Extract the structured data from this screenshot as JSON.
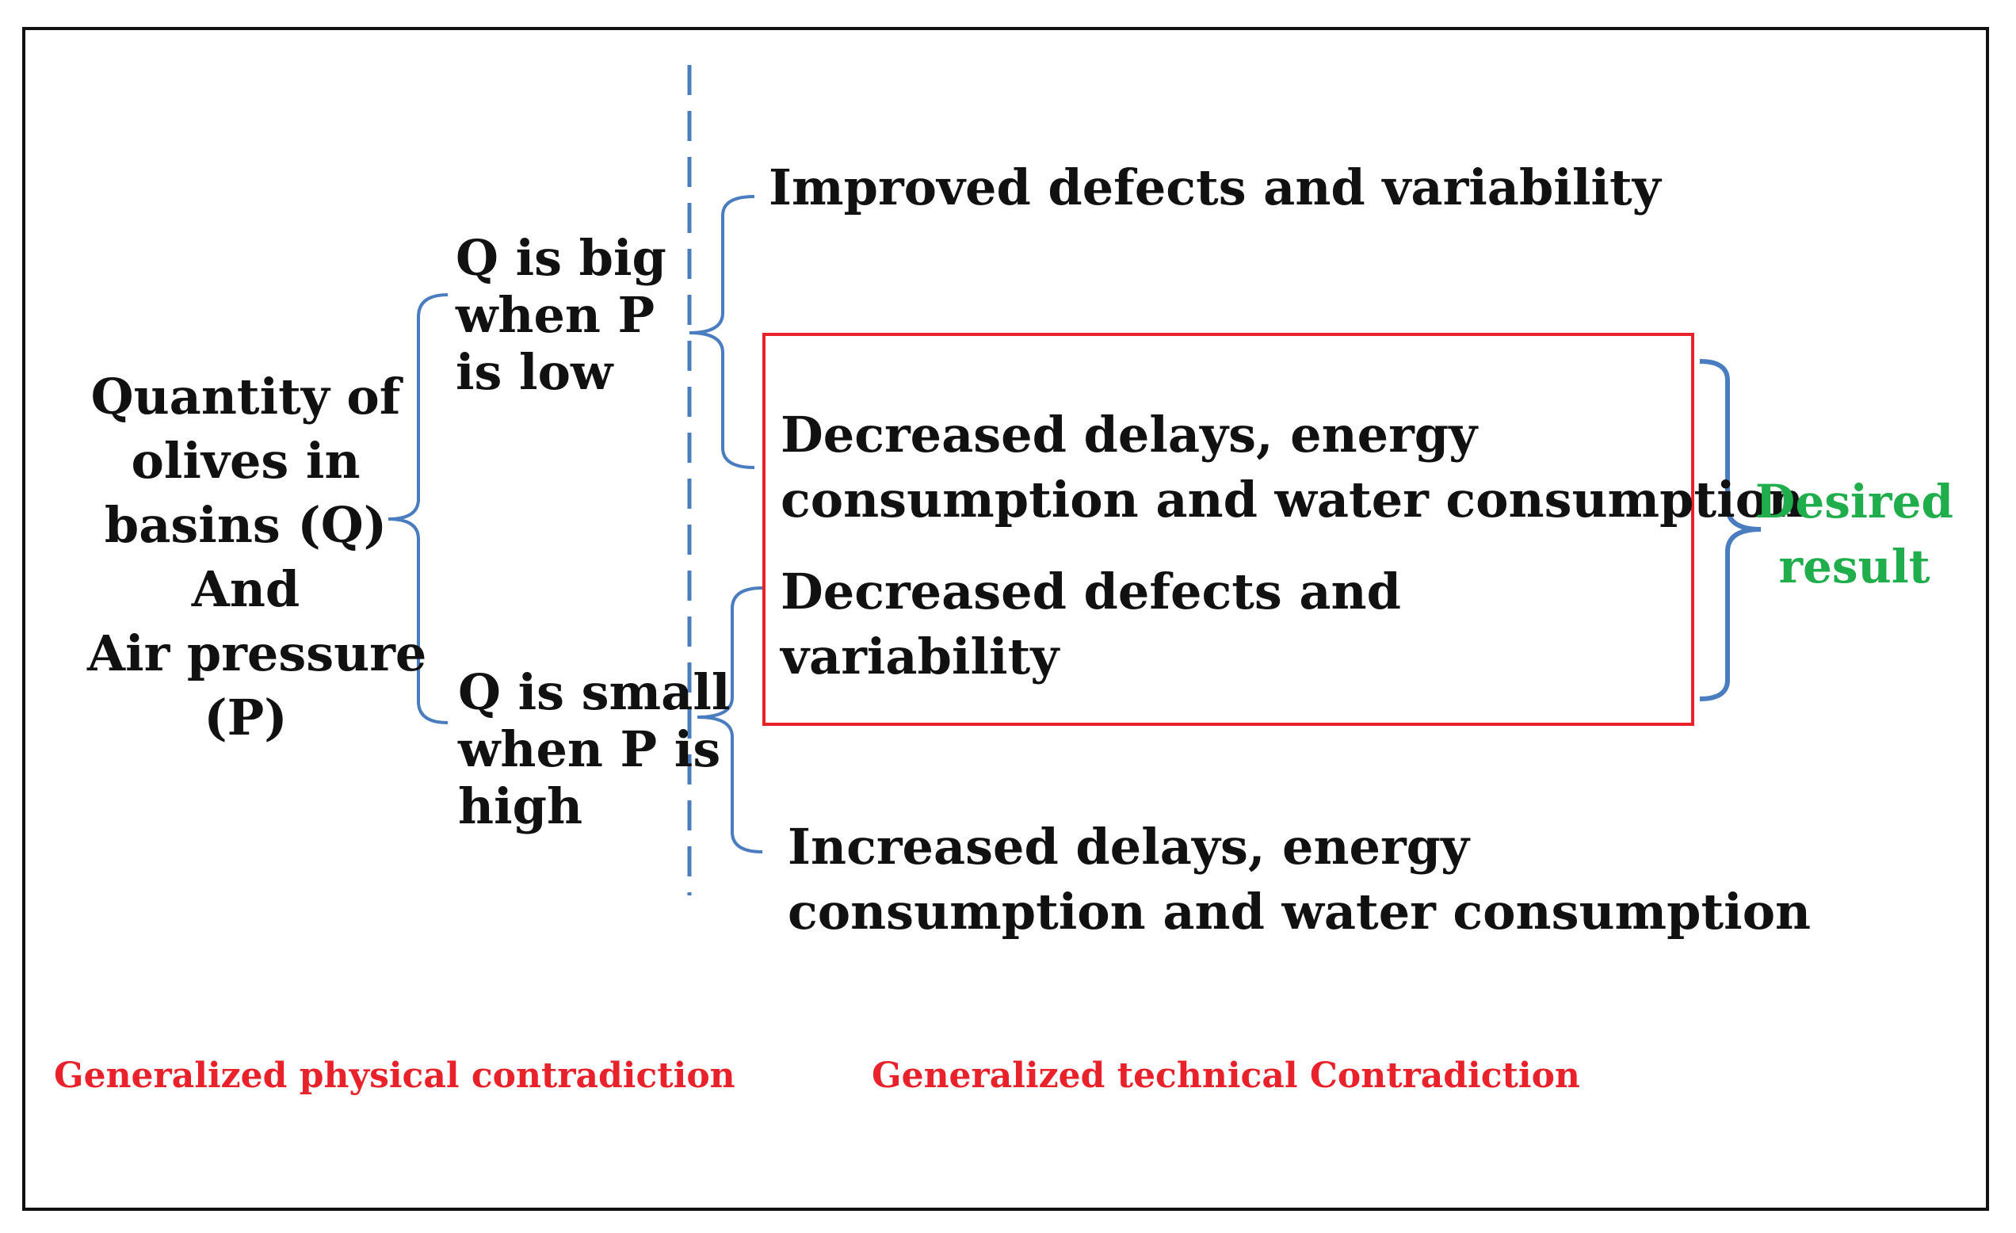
{
  "left_concept": {
    "lines": [
      "Quantity of",
      "olives in",
      "basins (Q)",
      "And",
      "Air pressure",
      "(P)"
    ]
  },
  "branch_top": {
    "lines": [
      "Q is big",
      "when P",
      "is low"
    ]
  },
  "branch_bottom": {
    "lines": [
      "Q is small",
      "when P is",
      "high"
    ]
  },
  "outcomes": {
    "improved": "Improved defects and variability",
    "decreased_delays": [
      "Decreased delays, energy",
      "consumption and water consumption"
    ],
    "decreased_defects": [
      "Decreased defects and",
      "variability"
    ],
    "increased_delays": [
      "Increased delays, energy",
      "consumption and water consumption"
    ]
  },
  "desired_result": [
    "Desired",
    "result"
  ],
  "footer": {
    "physical": "Generalized physical contradiction",
    "technical": "Generalized technical Contradiction"
  },
  "colors": {
    "bracket": "#4a7cc0",
    "highlight_box": "#e8212a",
    "footer_text": "#e8212a",
    "desired_text": "#1fae4b"
  }
}
